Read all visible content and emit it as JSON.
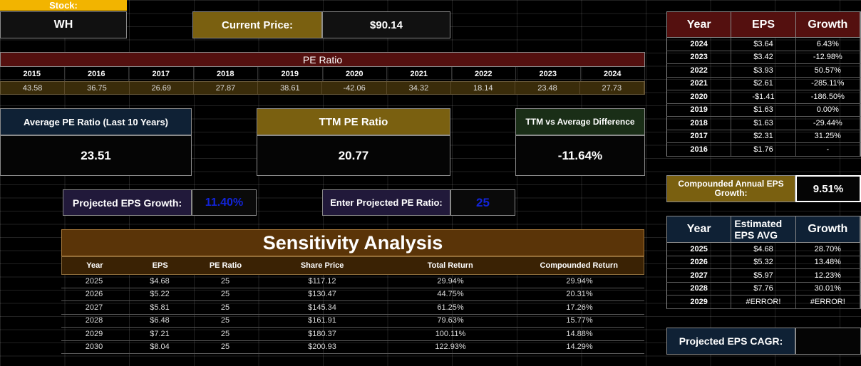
{
  "stock": {
    "label": "Stock:",
    "ticker": "WH"
  },
  "price": {
    "label": "Current Price:",
    "value": "$90.14"
  },
  "pe": {
    "title": "PE Ratio",
    "years": [
      "2015",
      "2016",
      "2017",
      "2018",
      "2019",
      "2020",
      "2021",
      "2022",
      "2023",
      "2024"
    ],
    "values": [
      "43.58",
      "36.75",
      "26.69",
      "27.87",
      "38.61",
      "-42.06",
      "34.32",
      "18.14",
      "23.48",
      "27.73"
    ]
  },
  "metrics": {
    "avg_label": "Average PE Ratio (Last 10 Years)",
    "avg_value": "23.51",
    "ttm_label": "TTM PE Ratio",
    "ttm_value": "20.77",
    "diff_label": "TTM vs Average Difference",
    "diff_value": "-11.64%"
  },
  "inputs": {
    "growth_label": "Projected EPS Growth:",
    "growth_value": "11.40%",
    "pe_label": "Enter Projected PE Ratio:",
    "pe_value": "25"
  },
  "sensitivity": {
    "title": "Sensitivity Analysis",
    "headers": [
      "Year",
      "EPS",
      "PE Ratio",
      "Share Price",
      "Total Return",
      "Compounded Return"
    ],
    "rows": [
      [
        "2025",
        "$4.68",
        "25",
        "$117.12",
        "29.94%",
        "29.94%"
      ],
      [
        "2026",
        "$5.22",
        "25",
        "$130.47",
        "44.75%",
        "20.31%"
      ],
      [
        "2027",
        "$5.81",
        "25",
        "$145.34",
        "61.25%",
        "17.26%"
      ],
      [
        "2028",
        "$6.48",
        "25",
        "$161.91",
        "79.63%",
        "15.77%"
      ],
      [
        "2029",
        "$7.21",
        "25",
        "$180.37",
        "100.11%",
        "14.88%"
      ],
      [
        "2030",
        "$8.04",
        "25",
        "$200.93",
        "122.93%",
        "14.29%"
      ]
    ]
  },
  "eps_hist": {
    "headers": [
      "Year",
      "EPS",
      "Growth"
    ],
    "rows": [
      [
        "2024",
        "$3.64",
        "6.43%"
      ],
      [
        "2023",
        "$3.42",
        "-12.98%"
      ],
      [
        "2022",
        "$3.93",
        "50.57%"
      ],
      [
        "2021",
        "$2.61",
        "-285.11%"
      ],
      [
        "2020",
        "-$1.41",
        "-186.50%"
      ],
      [
        "2019",
        "$1.63",
        "0.00%"
      ],
      [
        "2018",
        "$1.63",
        "-29.44%"
      ],
      [
        "2017",
        "$2.31",
        "31.25%"
      ],
      [
        "2016",
        "$1.76",
        "-"
      ]
    ]
  },
  "cagr": {
    "label": "Compounded Annual EPS Growth:",
    "value": "9.51%"
  },
  "eps_est": {
    "headers": [
      "Year",
      "Estimated EPS AVG",
      "Growth"
    ],
    "rows": [
      [
        "2025",
        "$4.68",
        "28.70%"
      ],
      [
        "2026",
        "$5.32",
        "13.48%"
      ],
      [
        "2027",
        "$5.97",
        "12.23%"
      ],
      [
        "2028",
        "$7.76",
        "30.01%"
      ],
      [
        "2029",
        "#ERROR!",
        "#ERROR!"
      ]
    ]
  },
  "proj_cagr": {
    "label": "Projected EPS CAGR:",
    "value": ""
  },
  "colors": {
    "gold": "#7a6010",
    "maroon": "#54100f",
    "navy": "#0f2135",
    "input_blue": "#1224d8"
  }
}
